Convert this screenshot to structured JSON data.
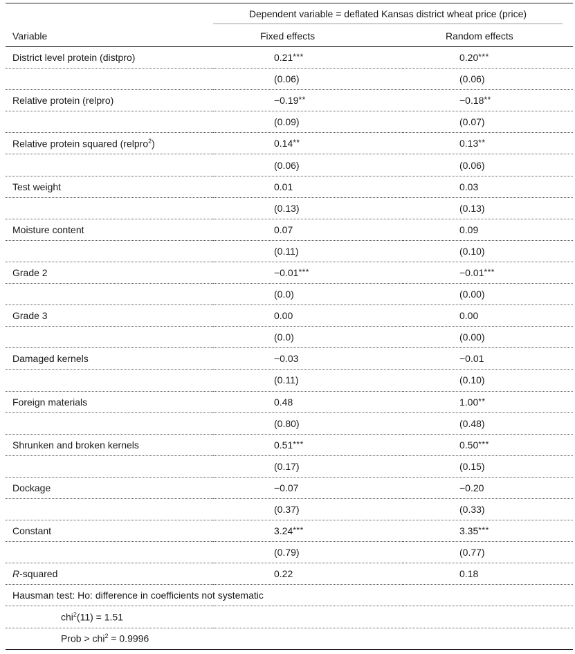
{
  "header": {
    "dependent_label": "Dependent variable = deflated Kansas district wheat price (price)",
    "col_variable": "Variable",
    "col_fixed": "Fixed effects",
    "col_random": "Random effects"
  },
  "rows": [
    {
      "label": "District level protein (distpro)",
      "fe": "0.21",
      "fe_stars": "***",
      "re": "0.20",
      "re_stars": "***"
    },
    {
      "label": "",
      "fe": "(0.06)",
      "fe_stars": "",
      "re": "(0.06)",
      "re_stars": ""
    },
    {
      "label": "Relative protein (relpro)",
      "fe": "−0.19",
      "fe_stars": "**",
      "re": "−0.18",
      "re_stars": "**"
    },
    {
      "label": "",
      "fe": "(0.09)",
      "fe_stars": "",
      "re": "(0.07)",
      "re_stars": ""
    },
    {
      "label": "Relative protein squared (relpro",
      "label_sup": "2",
      "label_tail": ")",
      "fe": "0.14",
      "fe_stars": "**",
      "re": "0.13",
      "re_stars": "**"
    },
    {
      "label": "",
      "fe": "(0.06)",
      "fe_stars": "",
      "re": "(0.06)",
      "re_stars": ""
    },
    {
      "label": "Test weight",
      "fe": "0.01",
      "fe_stars": "",
      "re": "0.03",
      "re_stars": ""
    },
    {
      "label": "",
      "fe": "(0.13)",
      "fe_stars": "",
      "re": "(0.13)",
      "re_stars": ""
    },
    {
      "label": "Moisture content",
      "fe": "0.07",
      "fe_stars": "",
      "re": "0.09",
      "re_stars": ""
    },
    {
      "label": "",
      "fe": "(0.11)",
      "fe_stars": "",
      "re": "(0.10)",
      "re_stars": ""
    },
    {
      "label": "Grade 2",
      "fe": "−0.01",
      "fe_stars": "***",
      "re": "−0.01",
      "re_stars": "***"
    },
    {
      "label": "",
      "fe": "(0.0)",
      "fe_stars": "",
      "re": "(0.00)",
      "re_stars": ""
    },
    {
      "label": "Grade 3",
      "fe": "0.00",
      "fe_stars": "",
      "re": "0.00",
      "re_stars": ""
    },
    {
      "label": "",
      "fe": "(0.0)",
      "fe_stars": "",
      "re": "(0.00)",
      "re_stars": ""
    },
    {
      "label": "Damaged kernels",
      "fe": "−0.03",
      "fe_stars": "",
      "re": "−0.01",
      "re_stars": ""
    },
    {
      "label": "",
      "fe": "(0.11)",
      "fe_stars": "",
      "re": "(0.10)",
      "re_stars": ""
    },
    {
      "label": "Foreign materials",
      "fe": "0.48",
      "fe_stars": "",
      "re": "1.00",
      "re_stars": "**"
    },
    {
      "label": "",
      "fe": "(0.80)",
      "fe_stars": "",
      "re": "(0.48)",
      "re_stars": ""
    },
    {
      "label": "Shrunken and broken kernels",
      "fe": "0.51",
      "fe_stars": "***",
      "re": "0.50",
      "re_stars": "***"
    },
    {
      "label": "",
      "fe": "(0.17)",
      "fe_stars": "",
      "re": "(0.15)",
      "re_stars": ""
    },
    {
      "label": "Dockage",
      "fe": "−0.07",
      "fe_stars": "",
      "re": "−0.20",
      "re_stars": ""
    },
    {
      "label": "",
      "fe": "(0.37)",
      "fe_stars": "",
      "re": "(0.33)",
      "re_stars": ""
    },
    {
      "label": "Constant",
      "fe": "3.24",
      "fe_stars": "***",
      "re": "3.35",
      "re_stars": "***"
    },
    {
      "label": "",
      "fe": "(0.79)",
      "fe_stars": "",
      "re": "(0.77)",
      "re_stars": ""
    },
    {
      "label_italic": "R",
      "label": "-squared",
      "fe": "0.22",
      "fe_stars": "",
      "re": "0.18",
      "re_stars": ""
    }
  ],
  "hausman": {
    "title": "Hausman test: Ho: difference in coefficients not systematic",
    "chi_prefix": "chi",
    "chi_sup": "2",
    "chi_value": "(11) = 1.51",
    "prob_prefix": "Prob > chi",
    "prob_sup": "2",
    "prob_value": " = 0.9996"
  }
}
